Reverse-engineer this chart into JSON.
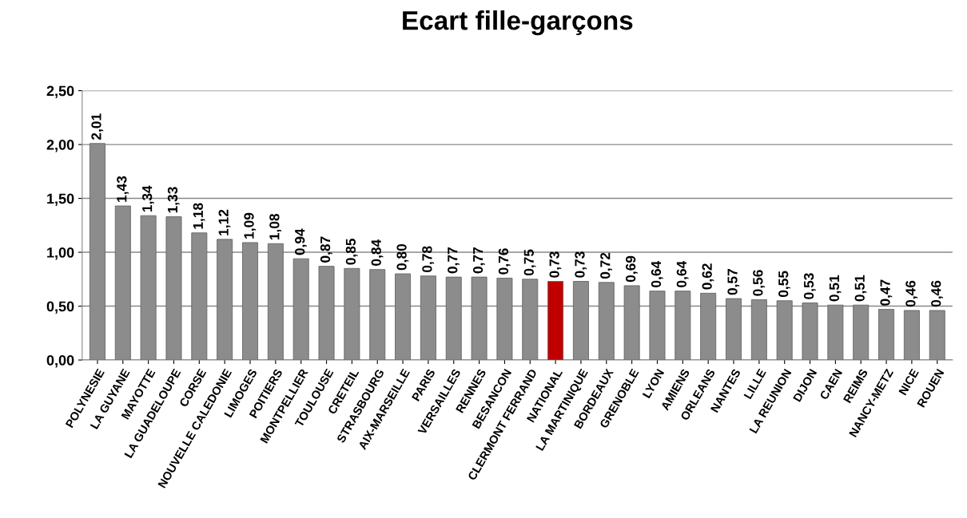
{
  "chart_data": {
    "type": "bar",
    "title": "Ecart fille-garçons",
    "categories": [
      "POLYNESIE",
      "LA GUYANE",
      "MAYOTTE",
      "LA GUADELOUPE",
      "CORSE",
      "NOUVELLE CALEDONIE",
      "LIMOGES",
      "POITIERS",
      "MONTPELLIER",
      "TOULOUSE",
      "CRETEIL",
      "STRASBOURG",
      "AIX-MARSEILLE",
      "PARIS",
      "VERSAILLES",
      "RENNES",
      "BESANCON",
      "CLERMONT FERRAND",
      "NATIONAL",
      "LA MARTINIQUE",
      "BORDEAUX",
      "GRENOBLE",
      "LYON",
      "AMIENS",
      "ORLEANS",
      "NANTES",
      "LILLE",
      "LA REUNION",
      "DIJON",
      "CAEN",
      "REIMS",
      "NANCY-METZ",
      "NICE",
      "ROUEN"
    ],
    "values": [
      2.01,
      1.43,
      1.34,
      1.33,
      1.18,
      1.12,
      1.09,
      1.08,
      0.94,
      0.87,
      0.85,
      0.84,
      0.8,
      0.78,
      0.77,
      0.77,
      0.76,
      0.75,
      0.73,
      0.73,
      0.72,
      0.69,
      0.64,
      0.64,
      0.62,
      0.57,
      0.56,
      0.55,
      0.53,
      0.51,
      0.51,
      0.47,
      0.46,
      0.46
    ],
    "value_labels": [
      "2,01",
      "1,43",
      "1,34",
      "1,33",
      "1,18",
      "1,12",
      "1,09",
      "1,08",
      "0,94",
      "0,87",
      "0,85",
      "0,84",
      "0,80",
      "0,78",
      "0,77",
      "0,77",
      "0,76",
      "0,75",
      "0,73",
      "0,73",
      "0,72",
      "0,69",
      "0,64",
      "0,64",
      "0,62",
      "0,57",
      "0,56",
      "0,55",
      "0,53",
      "0,51",
      "0,51",
      "0,47",
      "0,46",
      "0,46"
    ],
    "colors": [
      "#8c8c8c",
      "#8c8c8c",
      "#8c8c8c",
      "#8c8c8c",
      "#8c8c8c",
      "#8c8c8c",
      "#8c8c8c",
      "#8c8c8c",
      "#8c8c8c",
      "#8c8c8c",
      "#8c8c8c",
      "#8c8c8c",
      "#8c8c8c",
      "#8c8c8c",
      "#8c8c8c",
      "#8c8c8c",
      "#8c8c8c",
      "#8c8c8c",
      "#c00000",
      "#8c8c8c",
      "#8c8c8c",
      "#8c8c8c",
      "#8c8c8c",
      "#8c8c8c",
      "#8c8c8c",
      "#8c8c8c",
      "#8c8c8c",
      "#8c8c8c",
      "#8c8c8c",
      "#8c8c8c",
      "#8c8c8c",
      "#8c8c8c",
      "#8c8c8c",
      "#8c8c8c"
    ],
    "ylim": [
      0,
      2.5
    ],
    "yticks": [
      {
        "value": 0,
        "label": "0,00"
      },
      {
        "value": 0.5,
        "label": "0,50"
      },
      {
        "value": 1,
        "label": "1,00"
      },
      {
        "value": 1.5,
        "label": "1,50"
      },
      {
        "value": 2,
        "label": "2,00"
      },
      {
        "value": 2.5,
        "label": "2,50"
      }
    ],
    "grid": "y"
  }
}
